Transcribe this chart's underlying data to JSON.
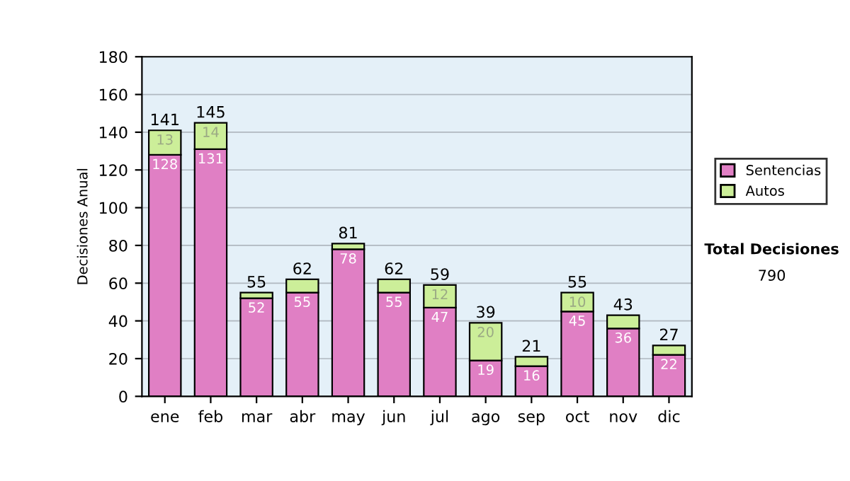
{
  "chart_data": {
    "type": "bar",
    "stacked": true,
    "ylabel": "Decisiones Anual",
    "categories": [
      "ene",
      "feb",
      "mar",
      "abr",
      "may",
      "jun",
      "jul",
      "ago",
      "sep",
      "oct",
      "nov",
      "dic"
    ],
    "series": [
      {
        "name": "Sentencias",
        "color": "#e07fc4",
        "values": [
          128,
          131,
          52,
          55,
          78,
          55,
          47,
          19,
          16,
          45,
          36,
          22
        ],
        "value_labels": [
          "128",
          "131",
          "52",
          "55",
          "78",
          "55",
          "47",
          "19",
          "16",
          "45",
          "36",
          "22"
        ]
      },
      {
        "name": "Autos",
        "color": "#ccee99",
        "values": [
          13,
          14,
          3,
          7,
          3,
          7,
          12,
          20,
          5,
          10,
          7,
          5
        ],
        "value_labels": [
          "13",
          "14",
          null,
          null,
          null,
          null,
          "12",
          "20",
          null,
          "10",
          null,
          null
        ]
      }
    ],
    "totals": [
      "141",
      "145",
      "55",
      "62",
      "81",
      "62",
      "59",
      "39",
      "21",
      "55",
      "43",
      "27"
    ],
    "ylim": [
      0,
      180
    ],
    "yticks": [
      0,
      20,
      40,
      60,
      80,
      100,
      120,
      140,
      160,
      180
    ],
    "grid": "y",
    "legend": "right",
    "annotations": [
      "Total Decisiones",
      "790"
    ]
  }
}
